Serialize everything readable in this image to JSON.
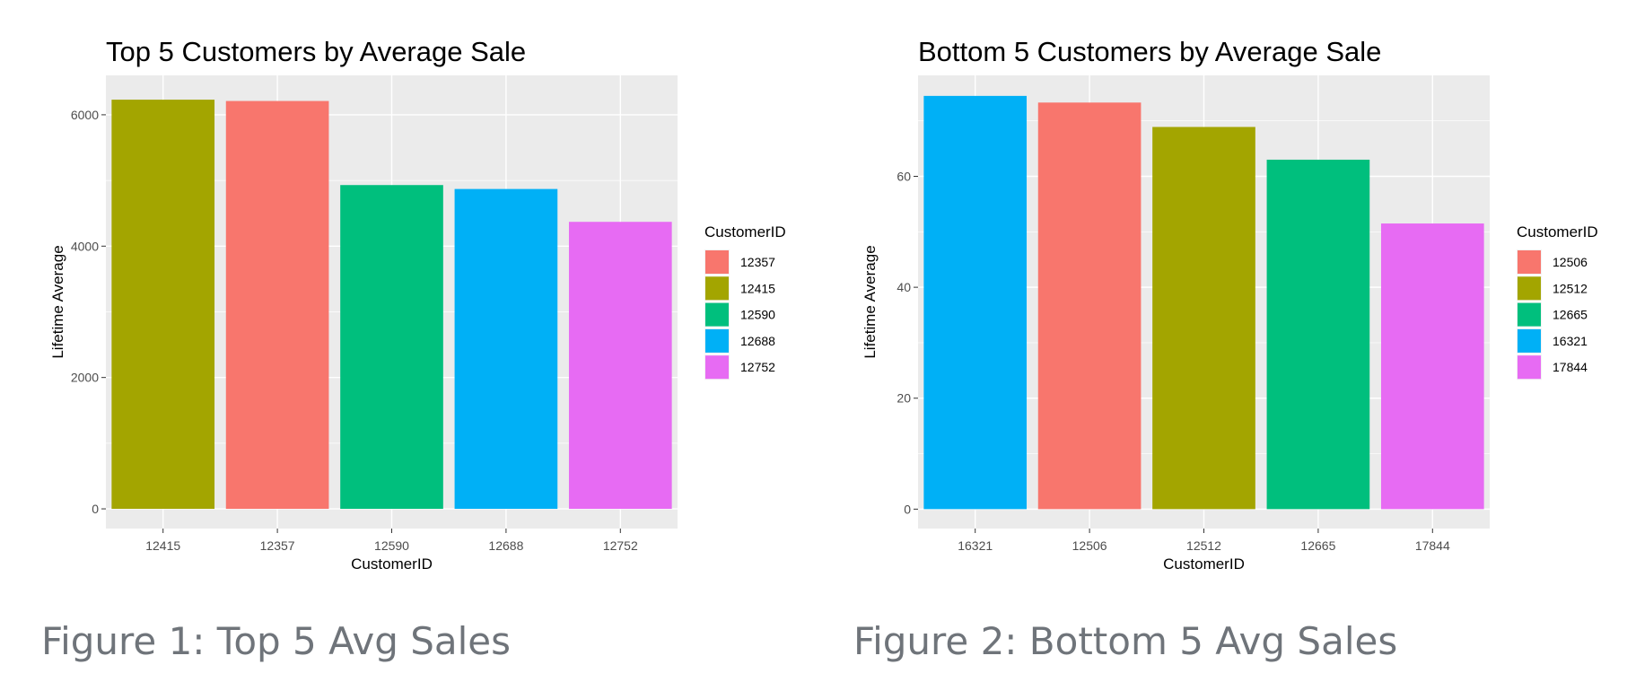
{
  "chart_data": [
    {
      "type": "bar",
      "title": "Top 5 Customers by Average Sale",
      "xlabel": "CustomerID",
      "ylabel": "Lifetime Average",
      "categories": [
        "12415",
        "12357",
        "12590",
        "12688",
        "12752"
      ],
      "values": [
        6230,
        6210,
        4930,
        4870,
        4370
      ],
      "colors": [
        "#A3A500",
        "#F8766D",
        "#00BF7D",
        "#00B0F6",
        "#E76BF3"
      ],
      "ylim": [
        -300,
        6600
      ],
      "yticks": [
        0,
        2000,
        4000,
        6000
      ],
      "ytick_labels": [
        "0",
        "2000",
        "4000",
        "6000"
      ],
      "legend": {
        "title": "CustomerID",
        "placement": "right",
        "entries": [
          {
            "label": "12357",
            "color": "#F8766D"
          },
          {
            "label": "12415",
            "color": "#A3A500"
          },
          {
            "label": "12590",
            "color": "#00BF7D"
          },
          {
            "label": "12688",
            "color": "#00B0F6"
          },
          {
            "label": "12752",
            "color": "#E76BF3"
          }
        ]
      },
      "grid": true,
      "caption": "Figure 1: Top 5 Avg Sales"
    },
    {
      "type": "bar",
      "title": "Bottom 5 Customers by Average Sale",
      "xlabel": "CustomerID",
      "ylabel": "Lifetime Average",
      "categories": [
        "16321",
        "12506",
        "12512",
        "12665",
        "17844"
      ],
      "values": [
        74.5,
        73.3,
        68.9,
        63.0,
        51.5
      ],
      "colors": [
        "#00B0F6",
        "#F8766D",
        "#A3A500",
        "#00BF7D",
        "#E76BF3"
      ],
      "ylim": [
        -3.5,
        78.2
      ],
      "yticks": [
        0,
        20,
        40,
        60
      ],
      "ytick_labels": [
        "0",
        "20",
        "40",
        "60"
      ],
      "legend": {
        "title": "CustomerID",
        "placement": "right",
        "entries": [
          {
            "label": "12506",
            "color": "#F8766D"
          },
          {
            "label": "12512",
            "color": "#A3A500"
          },
          {
            "label": "12665",
            "color": "#00BF7D"
          },
          {
            "label": "16321",
            "color": "#00B0F6"
          },
          {
            "label": "17844",
            "color": "#E76BF3"
          }
        ]
      },
      "grid": true,
      "caption": "Figure 2: Bottom 5 Avg Sales"
    }
  ]
}
